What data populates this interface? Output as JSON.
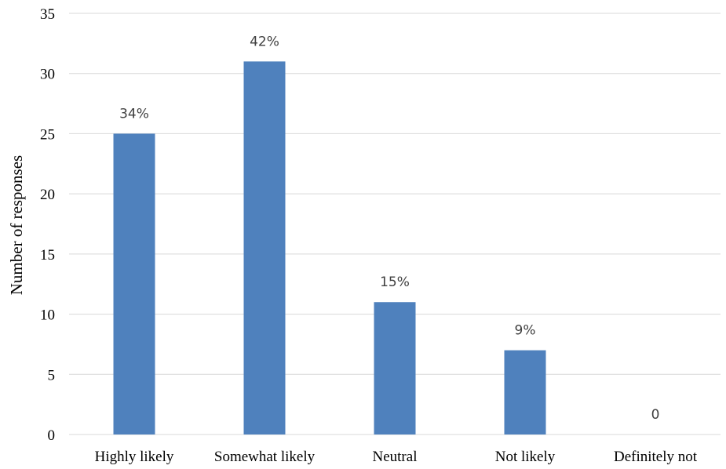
{
  "chart_data": {
    "type": "bar",
    "title": "",
    "xlabel": "",
    "ylabel": "Number of responses",
    "ylim": [
      0,
      35
    ],
    "yticks": [
      0,
      5,
      10,
      15,
      20,
      25,
      30,
      35
    ],
    "categories": [
      "Highly likely",
      "Somewhat likely",
      "Neutral",
      "Not likely",
      "Definitely not"
    ],
    "values": [
      25,
      31,
      11,
      7,
      0
    ],
    "data_labels": [
      "34%",
      "42%",
      "15%",
      "9%",
      "0"
    ],
    "bar_color": "#4f81bd",
    "grid": true,
    "legend": "none"
  }
}
